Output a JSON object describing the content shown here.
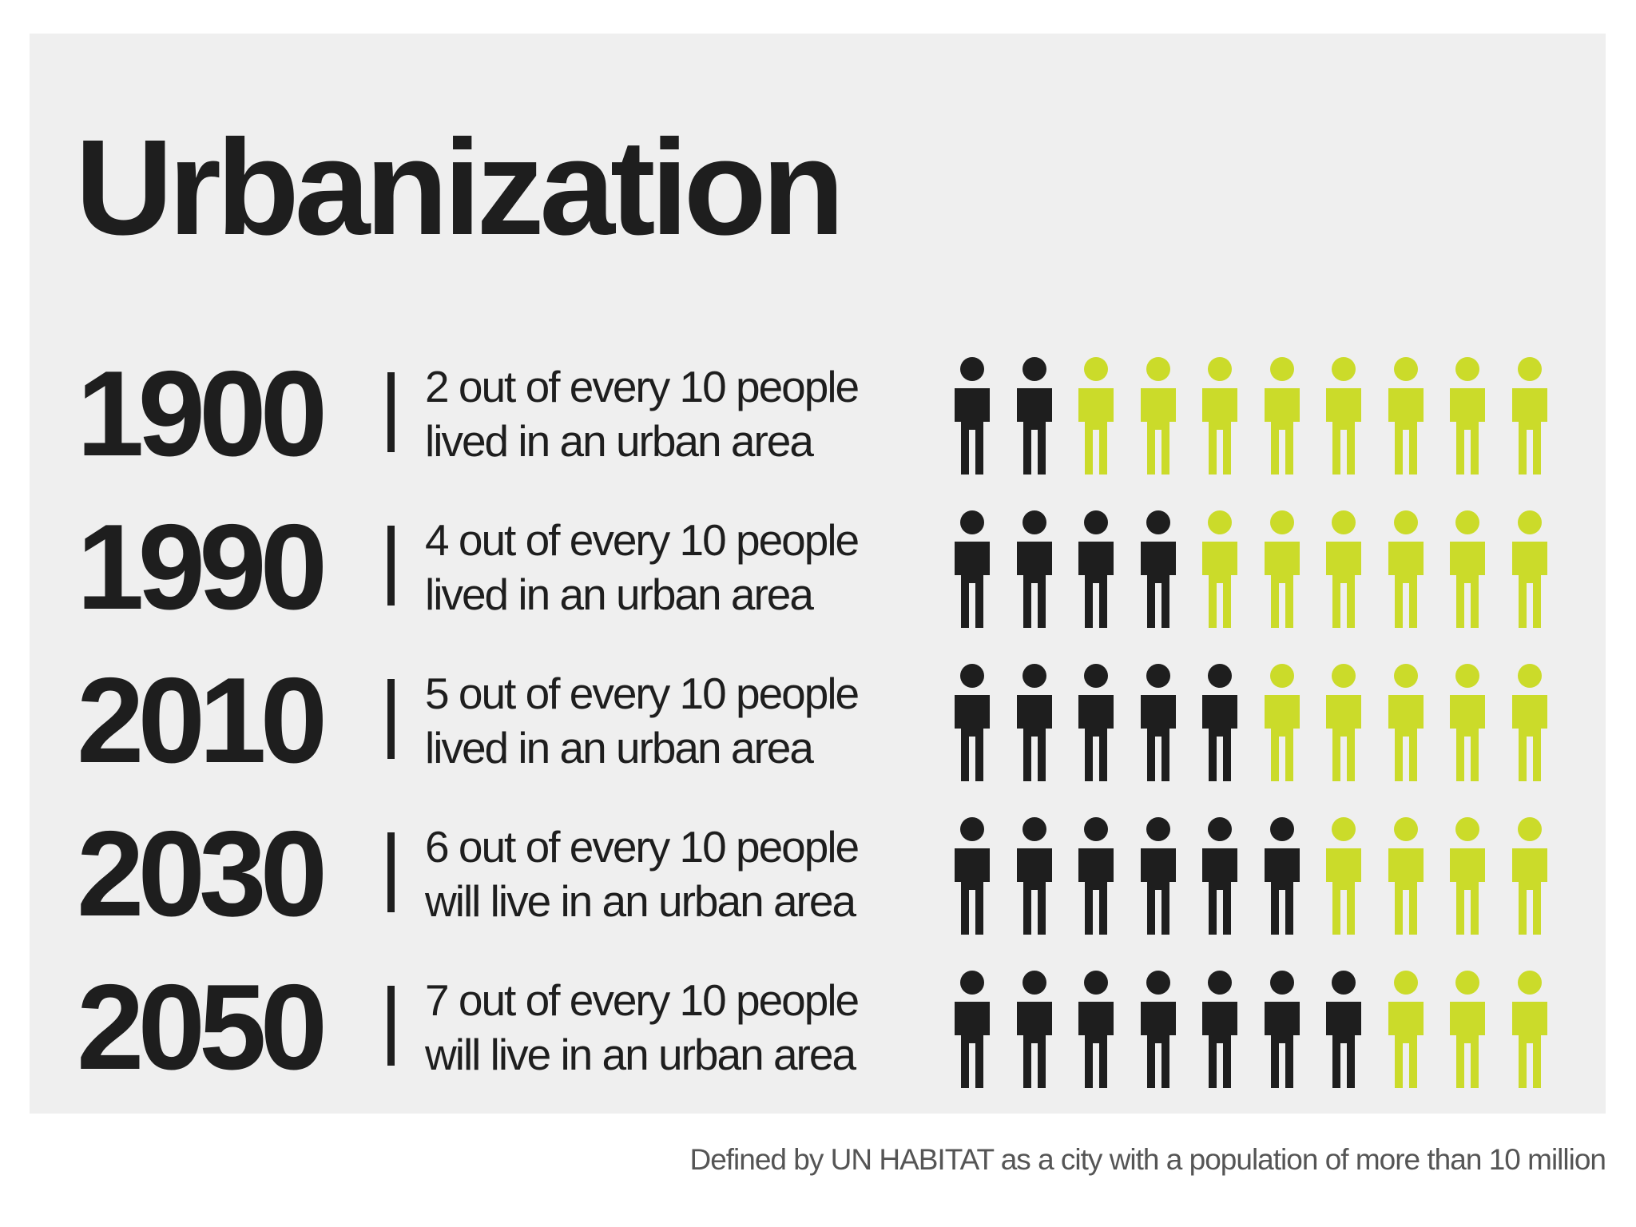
{
  "title": "Urbanization",
  "footnote": "Defined by UN HABITAT as a city with a population of more than 10 million",
  "colors": {
    "urban": "#1e1e1e",
    "rural": "#cbdb2a",
    "background": "#efefef"
  },
  "icon": "person-icon",
  "chart_data": {
    "type": "table",
    "title": "Urbanization",
    "total_per_row": 10,
    "rows": [
      {
        "year": "1900",
        "urban": 2,
        "line1": "2 out of every 10 people",
        "line2": "lived in an urban area"
      },
      {
        "year": "1990",
        "urban": 4,
        "line1": "4 out of every 10 people",
        "line2": "lived in an urban area"
      },
      {
        "year": "2010",
        "urban": 5,
        "line1": "5 out of every 10 people",
        "line2": "lived in an urban area"
      },
      {
        "year": "2030",
        "urban": 6,
        "line1": "6 out of every 10 people",
        "line2": "will live in an urban area"
      },
      {
        "year": "2050",
        "urban": 7,
        "line1": "7 out of every 10 people",
        "line2": "will live in an urban area"
      }
    ]
  }
}
